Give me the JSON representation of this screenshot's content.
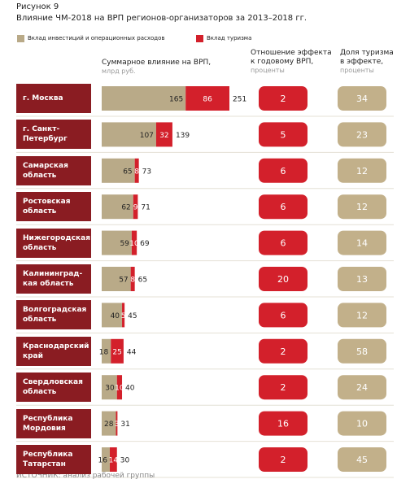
{
  "chart_data": {
    "type": "bar",
    "stacked": true,
    "orientation": "horizontal",
    "figure_label": "Рисунок 9",
    "title": "Влияние ЧМ-2018 на ВРП регионов-организаторов за 2013–2018 гг.",
    "categories": [
      "г. Москва",
      "г. Санкт-\nПетербург",
      "Самарская\nобласть",
      "Ростовская\nобласть",
      "Нижегородская\nобласть",
      "Калининград-\nкая область",
      "Волгоградская\nобласть",
      "Краснодарский\nкрай",
      "Свердловская\nобласть",
      "Республика\nМордовия",
      "Республика\nТатарстан"
    ],
    "series": [
      {
        "name": "Вклад инвестиций и операционных расходов",
        "color": "#b9aa88",
        "values": [
          165,
          107,
          65,
          62,
          59,
          57,
          40,
          18,
          30,
          28,
          16
        ]
      },
      {
        "name": "Вклад туризма",
        "color": "#d3202b",
        "values": [
          86,
          32,
          8,
          9,
          10,
          8,
          5,
          25,
          10,
          3,
          14
        ]
      }
    ],
    "totals": [
      251,
      139,
      73,
      71,
      69,
      65,
      45,
      44,
      40,
      31,
      30
    ],
    "axis_label": "Суммарное влияние на ВРП,",
    "axis_unit": "млрд руб.",
    "columns": [
      {
        "title": "Отношение эффекта\nк годовому ВРП,",
        "unit": "проценты",
        "color": "#d3202b",
        "values": [
          2,
          5,
          6,
          6,
          6,
          20,
          6,
          2,
          2,
          16,
          2
        ]
      },
      {
        "title": "Доля туризма\nв эффекте,",
        "unit": "проценты",
        "color": "#c2b08a",
        "values": [
          34,
          23,
          12,
          12,
          14,
          13,
          12,
          58,
          24,
          10,
          45
        ]
      }
    ],
    "source": "ИСТОЧНИК: анализ рабочей группы"
  }
}
